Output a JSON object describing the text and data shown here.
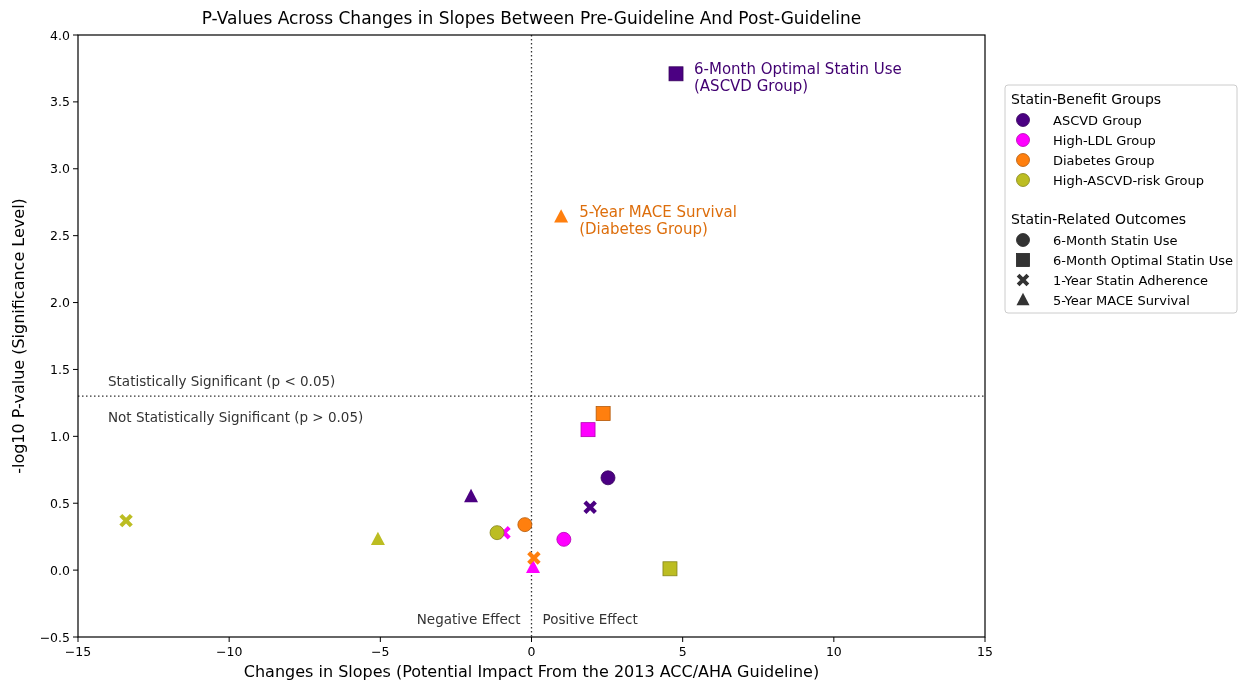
{
  "chart_data": {
    "type": "scatter",
    "title": "P-Values Across Changes in Slopes Between Pre-Guideline And Post-Guideline",
    "xlabel": "Changes in Slopes (Potential Impact From the 2013 ACC/AHA Guideline)",
    "ylabel": "-log10 P-value (Significance Level)",
    "xlim": [
      -15,
      15
    ],
    "xticks": [
      {
        "value": -15,
        "label": "−15"
      },
      {
        "value": -10,
        "label": "−10"
      },
      {
        "value": -5,
        "label": "−5"
      },
      0,
      5,
      10,
      15
    ],
    "ylim": [
      -0.5,
      4
    ],
    "yticks": [
      {
        "value": -0.5,
        "label": "−0.5"
      },
      {
        "value": 0,
        "label": "0.0"
      },
      {
        "value": 0.5,
        "label": "0.5"
      },
      {
        "value": 1,
        "label": "1.0"
      },
      {
        "value": 1.5,
        "label": "1.5"
      },
      {
        "value": 2,
        "label": "2.0"
      },
      {
        "value": 2.5,
        "label": "2.5"
      },
      {
        "value": 3,
        "label": "3.0"
      },
      {
        "value": 3.5,
        "label": "3.5"
      },
      {
        "value": 4,
        "label": "4.0"
      }
    ],
    "legend": "right",
    "legend_title": "Statin-Benefit Groups",
    "series": [
      {
        "name": "ASCVD Group",
        "color": "#4b0082",
        "x": [
          2.53,
          4.78,
          1.94,
          -2.0
        ],
        "values": [
          0.69,
          3.71,
          0.47,
          0.55
        ]
      },
      {
        "name": "High-LDL Group",
        "color": "#ff00ff",
        "x": [
          1.07,
          1.87,
          -0.91,
          0.05
        ],
        "values": [
          0.23,
          1.05,
          0.28,
          0.02
        ]
      },
      {
        "name": "Diabetes Group",
        "color": "#ff7f0e",
        "x": [
          -0.22,
          2.37,
          0.08,
          0.98
        ],
        "values": [
          0.34,
          1.17,
          0.09,
          2.64
        ]
      },
      {
        "name": "High-ASCVD-risk Group",
        "color": "#bcbd22",
        "x": [
          -1.14,
          4.58,
          -13.41,
          -5.08
        ],
        "values": [
          0.28,
          0.01,
          0.37,
          0.23
        ]
      }
    ],
    "ref_lines": [
      {
        "axis": "x",
        "value": 0,
        "line_style": "dotted"
      },
      {
        "axis": "y",
        "value": 1.301,
        "line_style": "dotted"
      }
    ],
    "annotations": [
      {
        "text": "6-Month Optimal Statin Use\n(ASCVD Group)",
        "x": 4.78,
        "y": 3.71
      },
      {
        "text": "5-Year MACE Survival\n(Diabetes Group)",
        "x": 0.98,
        "y": 2.64
      },
      "Statistically Significant (p < 0.05)",
      "Not Statistically Significant (p > 0.05)",
      "Negative Effect",
      "Positive Effect",
      "Statin-Related Outcomes",
      "6-Month Statin Use",
      "6-Month Optimal Statin Use",
      "1-Year Statin Adherence",
      "5-Year MACE Survival"
    ]
  }
}
